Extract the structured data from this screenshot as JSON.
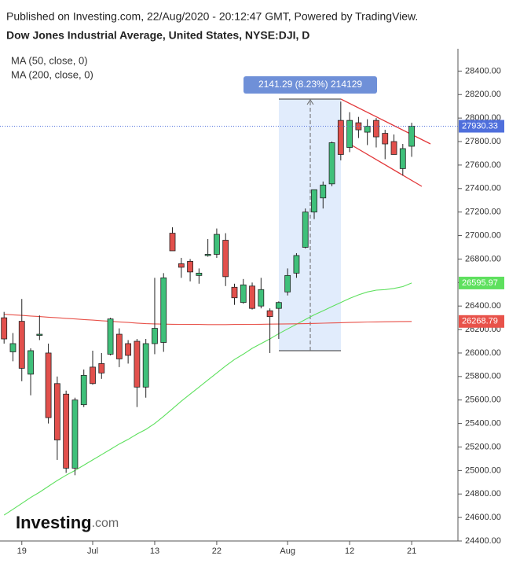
{
  "chart_data": {
    "type": "candlestick",
    "header": "Published on Investing.com, 22/Aug/2020 - 20:12:47 GMT, Powered by TradingView.",
    "title": "Dow Jones Industrial Average, United States, NYSE:DJI, D",
    "logo": {
      "name": "Investing",
      "suffix": ".com"
    },
    "measure_label": "2141.29 (8.23%) 214129",
    "categories": [
      "2020-06-17",
      "2020-06-18",
      "2020-06-19",
      "2020-06-22",
      "2020-06-23",
      "2020-06-24",
      "2020-06-25",
      "2020-06-26",
      "2020-06-29",
      "2020-06-30",
      "2020-07-01",
      "2020-07-02",
      "2020-07-06",
      "2020-07-07",
      "2020-07-08",
      "2020-07-09",
      "2020-07-10",
      "2020-07-13",
      "2020-07-14",
      "2020-07-15",
      "2020-07-16",
      "2020-07-17",
      "2020-07-20",
      "2020-07-21",
      "2020-07-22",
      "2020-07-23",
      "2020-07-24",
      "2020-07-27",
      "2020-07-28",
      "2020-07-29",
      "2020-07-30",
      "2020-07-31",
      "2020-08-03",
      "2020-08-04",
      "2020-08-05",
      "2020-08-06",
      "2020-08-07",
      "2020-08-10",
      "2020-08-11",
      "2020-08-12",
      "2020-08-13",
      "2020-08-14",
      "2020-08-17",
      "2020-08-18",
      "2020-08-19",
      "2020-08-20",
      "2020-08-21"
    ],
    "open": [
      26300,
      26010,
      26270,
      25820,
      26150,
      26000,
      25740,
      25650,
      25020,
      25560,
      25880,
      25910,
      25990,
      26160,
      26080,
      26100,
      25710,
      26080,
      26090,
      27020,
      26760,
      26780,
      26660,
      26830,
      26840,
      26960,
      26560,
      26430,
      26570,
      26400,
      26360,
      26380,
      26520,
      26680,
      26900,
      27200,
      27320,
      27440,
      27980,
      27750,
      27960,
      27880,
      27980,
      27870,
      27800,
      27570,
      27760
    ],
    "high": [
      26350,
      26170,
      26460,
      26040,
      26320,
      26080,
      25800,
      25680,
      25620,
      25860,
      26020,
      26000,
      26300,
      26210,
      26110,
      26120,
      26120,
      26640,
      26680,
      27070,
      26810,
      26800,
      26720,
      26970,
      27060,
      27020,
      26590,
      26630,
      26600,
      26640,
      26380,
      26440,
      26720,
      26850,
      27230,
      27390,
      27460,
      27800,
      28140,
      28050,
      28010,
      27990,
      28000,
      27900,
      27860,
      27780,
      27960
    ],
    "low": [
      26080,
      25930,
      25760,
      25640,
      26110,
      25400,
      25090,
      24980,
      24960,
      25540,
      25730,
      25780,
      25980,
      25880,
      25910,
      25540,
      25620,
      25990,
      26010,
      26870,
      26640,
      26610,
      26590,
      26820,
      26810,
      26570,
      26410,
      26420,
      26370,
      26380,
      26000,
      26120,
      26490,
      26640,
      26890,
      27140,
      27230,
      27420,
      27640,
      27710,
      27830,
      27770,
      27750,
      27650,
      27690,
      27510,
      27670
    ],
    "close": [
      26120,
      26080,
      25870,
      26020,
      26160,
      25450,
      25260,
      25020,
      25600,
      25810,
      25740,
      25830,
      26290,
      25950,
      25980,
      25710,
      26080,
      26210,
      26640,
      26870,
      26730,
      26690,
      26680,
      26840,
      27010,
      26650,
      26470,
      26580,
      26380,
      26540,
      26310,
      26430,
      26660,
      26830,
      27200,
      27390,
      27430,
      27790,
      27690,
      27980,
      27900,
      27930,
      27840,
      27780,
      27690,
      27740,
      27930.33
    ],
    "up_color": "#3fc07a",
    "down_color": "#e2504c",
    "last_color": "#4f6fdc",
    "series": [
      {
        "name": "MA (50, close, 0)",
        "color": "#5ee05e",
        "values": [
          24620,
          24670,
          24720,
          24770,
          24815,
          24865,
          24915,
          24960,
          25000,
          25045,
          25090,
          25135,
          25180,
          25225,
          25265,
          25310,
          25350,
          25400,
          25460,
          25525,
          25590,
          25650,
          25710,
          25770,
          25830,
          25890,
          25945,
          25990,
          26040,
          26080,
          26120,
          26165,
          26205,
          26245,
          26285,
          26325,
          26360,
          26395,
          26430,
          26465,
          26495,
          26520,
          26535,
          26540,
          26550,
          26565,
          26595.97
        ]
      },
      {
        "name": "MA (200, close, 0)",
        "color": "#e8524a",
        "values": [
          26330,
          26325,
          26320,
          26315,
          26310,
          26305,
          26300,
          26295,
          26290,
          26285,
          26280,
          26275,
          26270,
          26265,
          26260,
          26255,
          26250,
          26248,
          26246,
          26245,
          26244,
          26243,
          26243,
          26242,
          26242,
          26242,
          26243,
          26243,
          26244,
          26245,
          26246,
          26247,
          26248,
          26249,
          26250,
          26252,
          26254,
          26256,
          26258,
          26260,
          26262,
          26264,
          26265,
          26266,
          26267,
          26268,
          26268.79
        ]
      }
    ],
    "ylim": [
      24400,
      28590
    ],
    "yticks": [
      {
        "value": 24400,
        "label": "24400.00"
      },
      {
        "value": 24600,
        "label": "24600.00"
      },
      {
        "value": 24800,
        "label": "24800.00"
      },
      {
        "value": 25000,
        "label": "25000.00"
      },
      {
        "value": 25200,
        "label": "25200.00"
      },
      {
        "value": 25400,
        "label": "25400.00"
      },
      {
        "value": 25600,
        "label": "25600.00"
      },
      {
        "value": 25800,
        "label": "25800.00"
      },
      {
        "value": 26000,
        "label": "26000.00"
      },
      {
        "value": 26200,
        "label": "26200.00"
      },
      {
        "value": 26400,
        "label": "26400.00"
      },
      {
        "value": 26600,
        "label": "26600.00"
      },
      {
        "value": 26800,
        "label": "26800.00"
      },
      {
        "value": 27000,
        "label": "27000.00"
      },
      {
        "value": 27200,
        "label": "27200.00"
      },
      {
        "value": 27400,
        "label": "27400.00"
      },
      {
        "value": 27600,
        "label": "27600.00"
      },
      {
        "value": 27800,
        "label": "27800.00"
      },
      {
        "value": 28000,
        "label": "28000.00"
      },
      {
        "value": 28200,
        "label": "28200.00"
      },
      {
        "value": 28400,
        "label": "28400.00"
      }
    ],
    "xticks": [
      {
        "value": "2020-06-19",
        "label": "19"
      },
      {
        "value": "2020-07-01",
        "label": "Jul"
      },
      {
        "value": "2020-07-13",
        "label": "13"
      },
      {
        "value": "2020-07-22",
        "label": "22"
      },
      {
        "value": "2020-08-03",
        "label": "Aug"
      },
      {
        "value": "2020-08-12",
        "label": "12"
      },
      {
        "value": "2020-08-21",
        "label": "21"
      }
    ],
    "grid": false
  }
}
